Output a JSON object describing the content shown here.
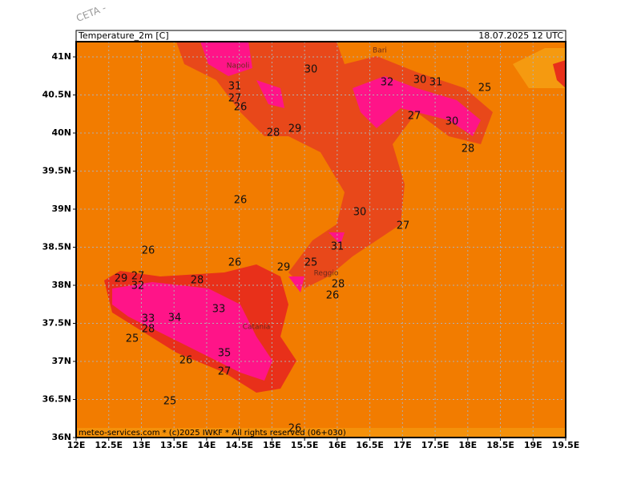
{
  "header": {
    "title": "Temperature_2m [C]",
    "date": "18.07.2025 12 UTC",
    "model": "CETA - "
  },
  "footer": "meteo-services.com * (c)2025 IWKF * All rights reserved (06+030)",
  "axes": {
    "lon_labels": [
      "12E",
      "12.5E",
      "13E",
      "13.5E",
      "14E",
      "14.5E",
      "15E",
      "15.5E",
      "16E",
      "16.5E",
      "17E",
      "17.5E",
      "18E",
      "18.5E",
      "19E",
      "19.5E"
    ],
    "lat_labels": [
      "41N",
      "40.5N",
      "40N",
      "39.5N",
      "39N",
      "38.5N",
      "38N",
      "37.5N",
      "37N",
      "36.5N",
      "36N"
    ]
  },
  "cities": [
    "Napoli",
    "Bari",
    "Reggio",
    "Catania"
  ],
  "contour_labels": [
    "31",
    "27",
    "26",
    "30",
    "32",
    "30",
    "31",
    "25",
    "27",
    "30",
    "28",
    "28",
    "29",
    "26",
    "30",
    "27",
    "31",
    "26",
    "26",
    "29",
    "25",
    "28",
    "26",
    "29",
    "27",
    "32",
    "28",
    "33",
    "34",
    "33",
    "28",
    "25",
    "35",
    "26",
    "27",
    "25",
    "26"
  ]
}
